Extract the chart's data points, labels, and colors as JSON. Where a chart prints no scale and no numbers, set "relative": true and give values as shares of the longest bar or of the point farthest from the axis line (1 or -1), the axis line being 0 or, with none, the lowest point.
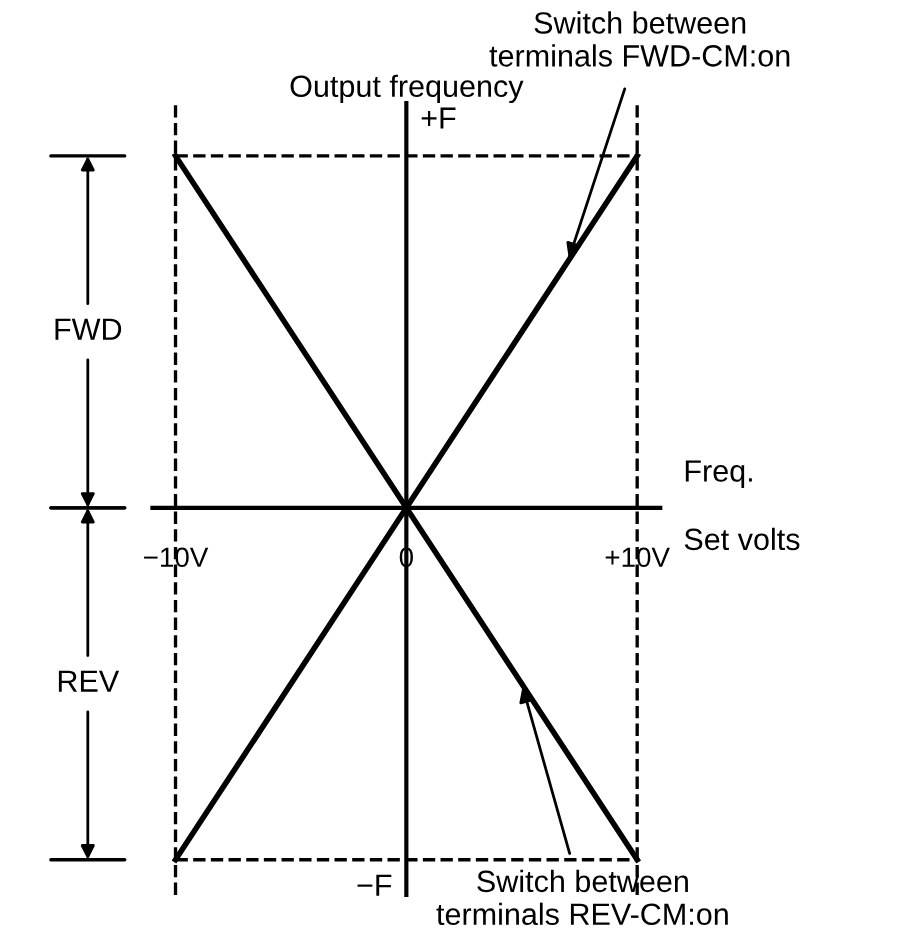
{
  "chart_data": {
    "type": "line",
    "xlabel": "Freq.\nSet volts",
    "ylabel": "Output frequency",
    "x": [
      -10,
      0,
      10
    ],
    "relative": true,
    "series": [
      {
        "color": "#000000",
        "values": [
          -1,
          0,
          1
        ]
      },
      {
        "color": "#000000",
        "values": [
          1,
          0,
          -1
        ]
      },
      {
        "color": "#000000",
        "values": [
          1,
          1,
          1
        ],
        "line_style": "dashed"
      },
      {
        "color": "#000000",
        "values": [
          -1,
          -1,
          -1
        ],
        "line_style": "dashed"
      }
    ],
    "xlim": [
      -11,
      11
    ],
    "xticks": [
      {
        "value": -10,
        "label": "−10V"
      },
      {
        "value": 0,
        "label": "0"
      },
      {
        "value": 10,
        "label": "+10V"
      }
    ],
    "ref_lines": [
      {
        "axis": "x",
        "value": -10,
        "line_style": "dashed"
      },
      {
        "axis": "x",
        "value": 10,
        "line_style": "dashed"
      }
    ],
    "annotations": [
      {
        "text": "Switch between\nterminals FWD-CM:on",
        "x": 7,
        "y": 0.7
      },
      {
        "text": "Switch between\nterminals REV-CM:on",
        "x": 5,
        "y": -0.5
      },
      "FWD",
      "REV",
      "+F",
      "−F"
    ],
    "grid": false,
    "legend": false,
    "marker": "none",
    "line_style": "solid"
  }
}
